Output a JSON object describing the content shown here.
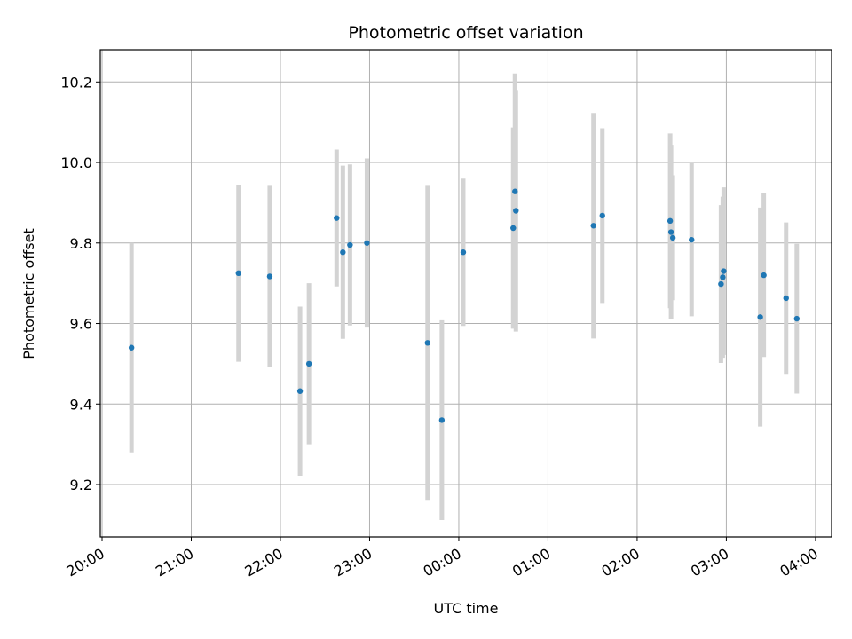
{
  "chart_data": {
    "type": "scatter",
    "title": "Photometric offset variation",
    "xlabel": "UTC time",
    "ylabel": "Photometric offset",
    "x_ticks": [
      {
        "t": -4.0,
        "label": "20:00"
      },
      {
        "t": -3.0,
        "label": "21:00"
      },
      {
        "t": -2.0,
        "label": "22:00"
      },
      {
        "t": -1.0,
        "label": "23:00"
      },
      {
        "t": 0.0,
        "label": "00:00"
      },
      {
        "t": 1.0,
        "label": "01:00"
      },
      {
        "t": 2.0,
        "label": "02:00"
      },
      {
        "t": 3.0,
        "label": "03:00"
      },
      {
        "t": 4.0,
        "label": "04:00"
      }
    ],
    "y_ticks": [
      9.2,
      9.4,
      9.6,
      9.8,
      10.0,
      10.2
    ],
    "xlim": [
      -4.02,
      4.18
    ],
    "ylim": [
      9.07,
      10.28
    ],
    "grid": true,
    "colors": {
      "point": "#1f77b4",
      "errorbar": "#d3d3d3",
      "grid": "#b0b0b0"
    },
    "series": [
      {
        "points": [
          {
            "t": -3.67,
            "y": 9.54,
            "err": 0.26
          },
          {
            "t": -2.47,
            "y": 9.725,
            "err": 0.22
          },
          {
            "t": -2.12,
            "y": 9.717,
            "err": 0.225
          },
          {
            "t": -1.78,
            "y": 9.432,
            "err": 0.21
          },
          {
            "t": -1.68,
            "y": 9.5,
            "err": 0.2
          },
          {
            "t": -1.37,
            "y": 9.862,
            "err": 0.17
          },
          {
            "t": -1.3,
            "y": 9.777,
            "err": 0.215
          },
          {
            "t": -1.22,
            "y": 9.795,
            "err": 0.2
          },
          {
            "t": -1.03,
            "y": 9.8,
            "err": 0.21
          },
          {
            "t": -0.35,
            "y": 9.552,
            "err": 0.39
          },
          {
            "t": -0.19,
            "y": 9.36,
            "err": 0.248
          },
          {
            "t": 0.05,
            "y": 9.777,
            "err": 0.183
          },
          {
            "t": 0.61,
            "y": 9.837,
            "err": 0.25
          },
          {
            "t": 0.63,
            "y": 9.928,
            "err": 0.293
          },
          {
            "t": 0.64,
            "y": 9.88,
            "err": 0.3
          },
          {
            "t": 1.51,
            "y": 9.843,
            "err": 0.28
          },
          {
            "t": 1.61,
            "y": 9.868,
            "err": 0.217
          },
          {
            "t": 2.37,
            "y": 9.855,
            "err": 0.217
          },
          {
            "t": 2.38,
            "y": 9.827,
            "err": 0.217
          },
          {
            "t": 2.4,
            "y": 9.813,
            "err": 0.155
          },
          {
            "t": 2.61,
            "y": 9.808,
            "err": 0.19
          },
          {
            "t": 2.94,
            "y": 9.698,
            "err": 0.196
          },
          {
            "t": 2.96,
            "y": 9.715,
            "err": 0.2
          },
          {
            "t": 2.97,
            "y": 9.73,
            "err": 0.208
          },
          {
            "t": 3.38,
            "y": 9.616,
            "err": 0.272
          },
          {
            "t": 3.42,
            "y": 9.72,
            "err": 0.203
          },
          {
            "t": 3.67,
            "y": 9.663,
            "err": 0.188
          },
          {
            "t": 3.79,
            "y": 9.612,
            "err": 0.186
          }
        ]
      }
    ]
  }
}
